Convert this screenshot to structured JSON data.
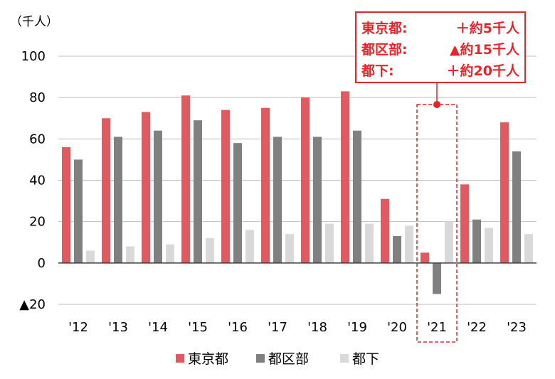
{
  "chart_data": {
    "type": "bar",
    "unit_label": "（千人）",
    "categories": [
      "'12",
      "'13",
      "'14",
      "'15",
      "'16",
      "'17",
      "'18",
      "'19",
      "'20",
      "'21",
      "'22",
      "'23"
    ],
    "series": [
      {
        "name": "東京都",
        "color": "#e05a60",
        "values": [
          56,
          70,
          73,
          81,
          74,
          75,
          80,
          83,
          31,
          5,
          38,
          68
        ]
      },
      {
        "name": "都区部",
        "color": "#808080",
        "values": [
          50,
          61,
          64,
          69,
          58,
          61,
          61,
          64,
          13,
          -15,
          21,
          54
        ]
      },
      {
        "name": "都下",
        "color": "#d9d9d9",
        "values": [
          6,
          8,
          9,
          12,
          16,
          14,
          19,
          19,
          18,
          20,
          17,
          14
        ]
      }
    ],
    "y_ticks": [
      {
        "value": 100,
        "label": "100"
      },
      {
        "value": 80,
        "label": "80"
      },
      {
        "value": 60,
        "label": "60"
      },
      {
        "value": 40,
        "label": "40"
      },
      {
        "value": 20,
        "label": "20"
      },
      {
        "value": 0,
        "label": "0"
      },
      {
        "value": -20,
        "label": "▲20"
      }
    ],
    "ylim": [
      -20,
      100
    ],
    "grid": true,
    "legend_position": "bottom",
    "highlight": {
      "category": "'21",
      "color": "#e6252b",
      "lines": [
        {
          "name": "東京都:",
          "value": "＋約5千人"
        },
        {
          "name": "都区部:",
          "value": "▲約15千人"
        },
        {
          "name": "都下:",
          "value": "＋約20千人"
        }
      ]
    }
  }
}
